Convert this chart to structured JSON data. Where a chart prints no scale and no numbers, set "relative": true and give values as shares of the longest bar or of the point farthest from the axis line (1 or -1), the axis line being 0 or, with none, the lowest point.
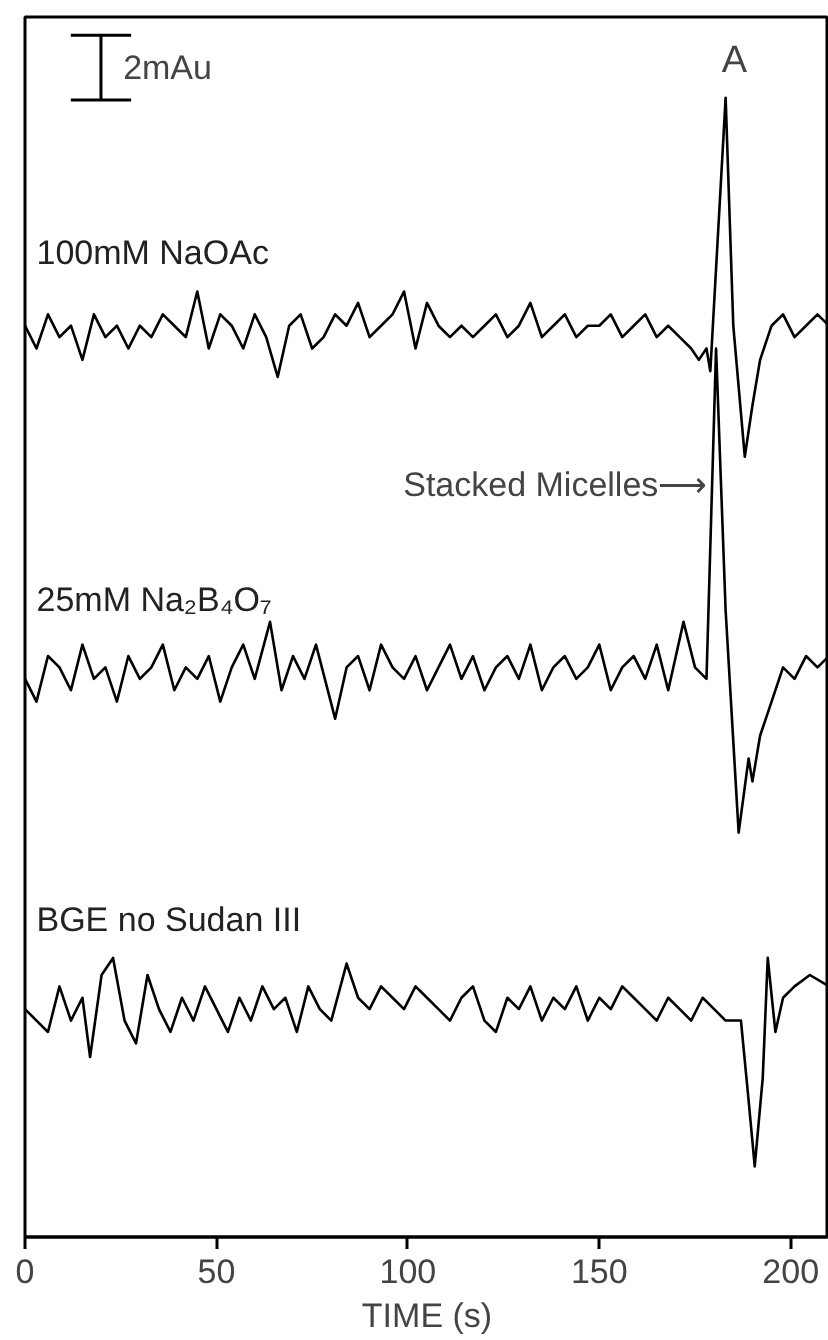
{
  "chart_data": {
    "type": "line",
    "relative": true,
    "xlabel": "TIME (s)",
    "xlim": [
      0,
      210
    ],
    "xticks": [
      0,
      50,
      100,
      150,
      200
    ],
    "grid": false,
    "line_style": "solid",
    "annotations": [
      "2mAu",
      {
        "text": "A",
        "x": 183,
        "y": 1.0
      },
      {
        "text": "Stacked Micelles⟶",
        "x": 179,
        "y": 0.66
      }
    ],
    "series": [
      {
        "name": "100mM NaOAc",
        "color": "#000000",
        "x": [
          0,
          3,
          6,
          9,
          12,
          15,
          18,
          21,
          24,
          27,
          30,
          33,
          36,
          39,
          42,
          45,
          48,
          51,
          54,
          57,
          60,
          63,
          66,
          69,
          72,
          75,
          78,
          81,
          84,
          87,
          90,
          93,
          96,
          99,
          102,
          105,
          108,
          111,
          114,
          117,
          120,
          123,
          126,
          129,
          132,
          135,
          138,
          141,
          144,
          147,
          150,
          153,
          156,
          159,
          162,
          165,
          168,
          171,
          174,
          176,
          178,
          179,
          181,
          183,
          185,
          188,
          190,
          192,
          195,
          198,
          201,
          204,
          207,
          210
        ],
        "values": [
          0.8,
          0.78,
          0.81,
          0.79,
          0.8,
          0.77,
          0.81,
          0.79,
          0.8,
          0.78,
          0.8,
          0.79,
          0.81,
          0.8,
          0.79,
          0.83,
          0.78,
          0.81,
          0.8,
          0.78,
          0.81,
          0.79,
          0.755,
          0.8,
          0.81,
          0.78,
          0.79,
          0.81,
          0.8,
          0.82,
          0.79,
          0.8,
          0.81,
          0.83,
          0.78,
          0.82,
          0.8,
          0.79,
          0.8,
          0.79,
          0.8,
          0.81,
          0.79,
          0.8,
          0.82,
          0.79,
          0.8,
          0.81,
          0.79,
          0.8,
          0.8,
          0.81,
          0.79,
          0.8,
          0.81,
          0.79,
          0.8,
          0.79,
          0.78,
          0.77,
          0.78,
          0.76,
          0.88,
          1.0,
          0.8,
          0.685,
          0.73,
          0.77,
          0.8,
          0.81,
          0.79,
          0.8,
          0.81,
          0.8
        ]
      },
      {
        "name": "25mM Na₂B₄O₇",
        "color": "#000000",
        "x": [
          0,
          3,
          6,
          9,
          12,
          15,
          18,
          21,
          24,
          27,
          30,
          33,
          36,
          39,
          42,
          45,
          48,
          51,
          54,
          57,
          60,
          64,
          67,
          70,
          73,
          76,
          81,
          84,
          87,
          90,
          93,
          96,
          99,
          102,
          105,
          108,
          111,
          114,
          117,
          120,
          123,
          126,
          129,
          132,
          135,
          138,
          141,
          144,
          147,
          150,
          153,
          156,
          159,
          162,
          165,
          168,
          172,
          175,
          178,
          180.5,
          183,
          186.4,
          189,
          190,
          192,
          195,
          198,
          201,
          204,
          207,
          210
        ],
        "values": [
          0.49,
          0.47,
          0.51,
          0.5,
          0.48,
          0.52,
          0.49,
          0.5,
          0.47,
          0.51,
          0.49,
          0.5,
          0.52,
          0.48,
          0.5,
          0.49,
          0.51,
          0.47,
          0.5,
          0.52,
          0.49,
          0.54,
          0.48,
          0.51,
          0.49,
          0.52,
          0.455,
          0.5,
          0.51,
          0.48,
          0.52,
          0.5,
          0.49,
          0.51,
          0.48,
          0.5,
          0.52,
          0.49,
          0.51,
          0.48,
          0.5,
          0.51,
          0.49,
          0.52,
          0.48,
          0.5,
          0.51,
          0.49,
          0.5,
          0.52,
          0.48,
          0.5,
          0.51,
          0.49,
          0.52,
          0.48,
          0.54,
          0.5,
          0.49,
          0.78,
          0.55,
          0.355,
          0.42,
          0.4,
          0.44,
          0.47,
          0.5,
          0.49,
          0.51,
          0.5,
          0.51
        ]
      },
      {
        "name": "BGE no Sudan III",
        "color": "#000000",
        "x": [
          0,
          3,
          6,
          9,
          12,
          15,
          17,
          20,
          23,
          26,
          29,
          32,
          35,
          38,
          41,
          44,
          47,
          50,
          53,
          56,
          59,
          62,
          65,
          68,
          71,
          74,
          77,
          80,
          84,
          87,
          90,
          93,
          96,
          99,
          102,
          105,
          108,
          111,
          114,
          117,
          120,
          123,
          126,
          129,
          132,
          135,
          138,
          141,
          144,
          147,
          150,
          153,
          156,
          159,
          162,
          165,
          168,
          171,
          174,
          177,
          180,
          183,
          187,
          189,
          190.6,
          192.7,
          194,
          196,
          198,
          201,
          205,
          210
        ],
        "values": [
          0.2,
          0.19,
          0.18,
          0.22,
          0.19,
          0.21,
          0.158,
          0.23,
          0.245,
          0.19,
          0.17,
          0.23,
          0.2,
          0.18,
          0.21,
          0.19,
          0.22,
          0.2,
          0.18,
          0.21,
          0.19,
          0.22,
          0.2,
          0.21,
          0.18,
          0.22,
          0.2,
          0.19,
          0.24,
          0.21,
          0.2,
          0.22,
          0.21,
          0.2,
          0.22,
          0.21,
          0.2,
          0.19,
          0.21,
          0.22,
          0.19,
          0.18,
          0.21,
          0.2,
          0.22,
          0.19,
          0.21,
          0.2,
          0.22,
          0.19,
          0.21,
          0.2,
          0.22,
          0.21,
          0.2,
          0.19,
          0.21,
          0.2,
          0.19,
          0.21,
          0.2,
          0.19,
          0.19,
          0.12,
          0.062,
          0.14,
          0.245,
          0.18,
          0.21,
          0.22,
          0.23,
          0.22
        ]
      }
    ]
  }
}
